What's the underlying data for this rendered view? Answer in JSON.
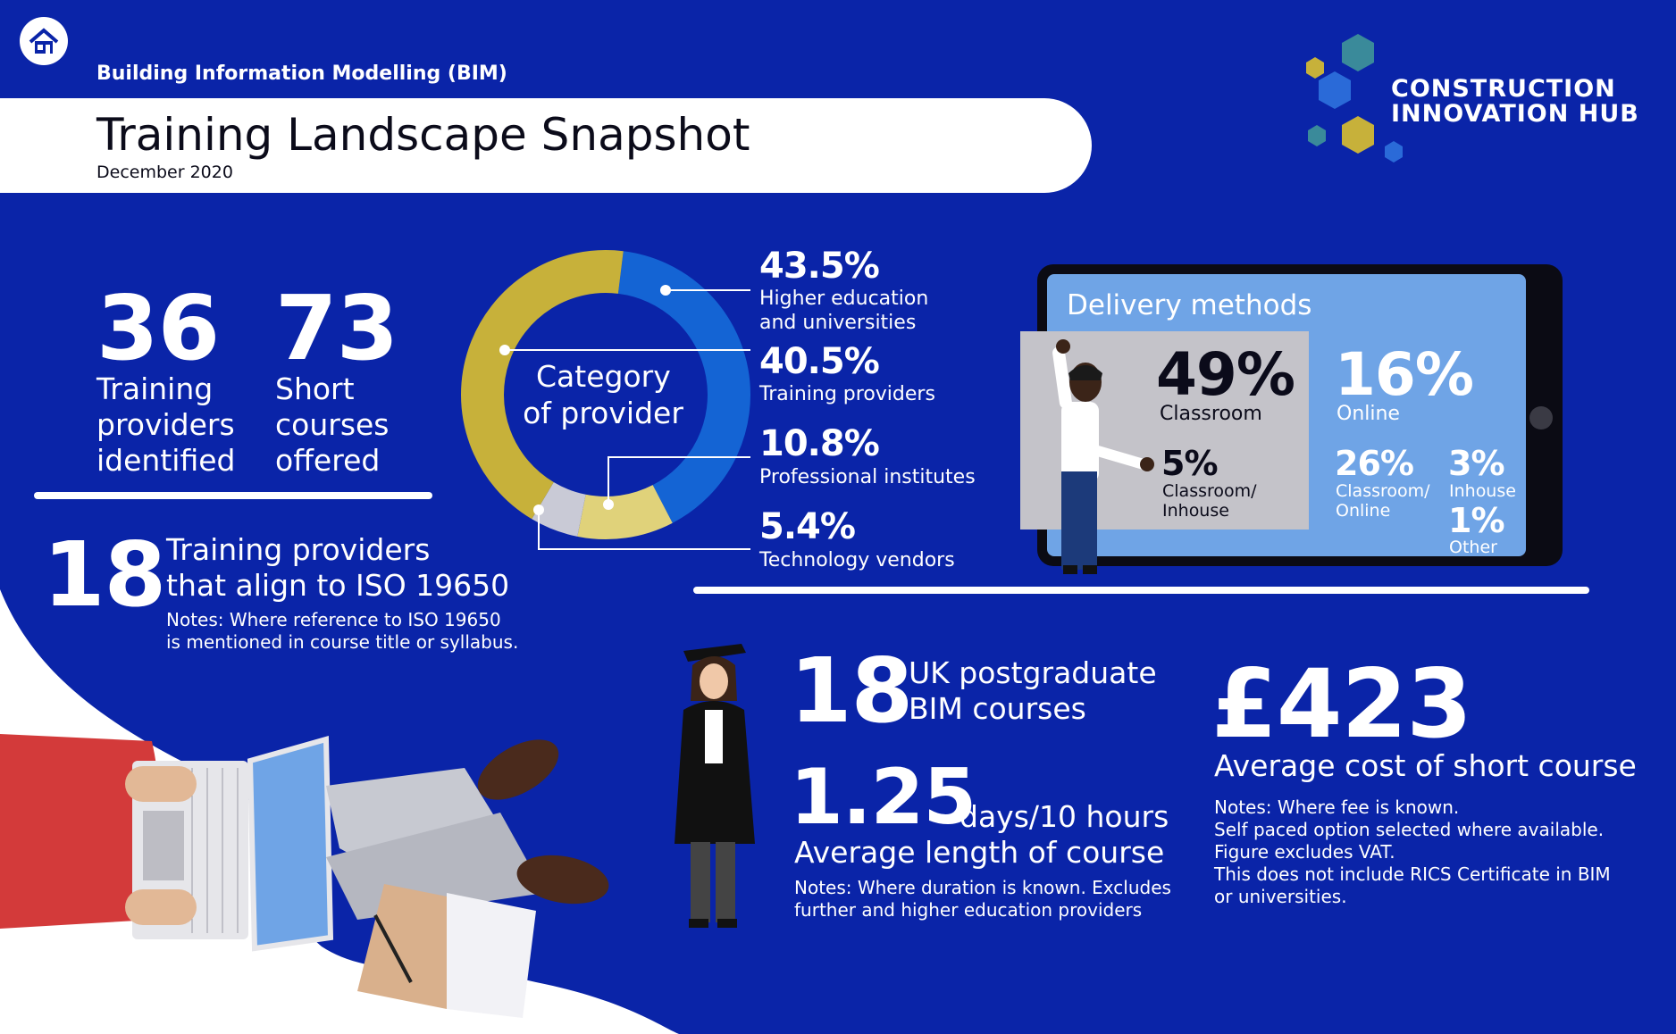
{
  "header": {
    "subtitle": "Building Information Modelling (BIM)",
    "title": "Training Landscape Snapshot",
    "date": "December 2020",
    "home_icon": "home-icon",
    "brand_line1": "CONSTRUCTION",
    "brand_line2": "INNOVATION HUB"
  },
  "stats": {
    "providers": {
      "value": "36",
      "line1": "Training",
      "line2": "providers",
      "line3": "identified"
    },
    "courses": {
      "value": "73",
      "line1": "Short",
      "line2": "courses",
      "line3": "offered"
    },
    "iso": {
      "value": "18",
      "line1": "Training providers",
      "line2": "that align to ISO 19650",
      "note1": "Notes: Where reference to ISO 19650",
      "note2": "is mentioned in course title or syllabus."
    }
  },
  "category": {
    "center1": "Category",
    "center2": "of provider",
    "items": [
      {
        "pct": "43.5%",
        "line1": "Higher education",
        "line2": "and universities"
      },
      {
        "pct": "40.5%",
        "line1": "Training providers",
        "line2": ""
      },
      {
        "pct": "10.8%",
        "line1": "Professional institutes",
        "line2": ""
      },
      {
        "pct": "5.4%",
        "line1": "Technology vendors",
        "line2": ""
      }
    ]
  },
  "chart_data": {
    "type": "pie",
    "title": "Category of provider",
    "categories": [
      "Higher education and universities",
      "Training providers",
      "Professional institutes",
      "Technology vendors"
    ],
    "values": [
      43.5,
      40.5,
      10.8,
      5.4
    ],
    "colors": [
      "#c7b13a",
      "#1464d4",
      "#e0d27a",
      "#c9cad6"
    ]
  },
  "delivery": {
    "title": "Delivery methods",
    "classroom": {
      "pct": "49%",
      "label": "Classroom"
    },
    "online": {
      "pct": "16%",
      "label": "Online"
    },
    "classroom_inhouse": {
      "pct": "5%",
      "line1": "Classroom/",
      "line2": "Inhouse"
    },
    "classroom_online": {
      "pct": "26%",
      "line1": "Classroom/",
      "line2": "Online"
    },
    "inhouse": {
      "pct": "3%",
      "label": "Inhouse"
    },
    "other": {
      "pct": "1%",
      "label": "Other"
    }
  },
  "postgrad": {
    "value": "18",
    "line1": "UK postgraduate",
    "line2": "BIM courses"
  },
  "length": {
    "value": "1.25",
    "unit": "days/10 hours",
    "label": "Average length of course",
    "note1": "Notes: Where duration is known. Excludes",
    "note2": "further and higher education providers"
  },
  "cost": {
    "value": "£423",
    "label": "Average cost of short course",
    "notes": [
      "Notes: Where fee is known.",
      "Self paced option selected where available.",
      "Figure excludes VAT.",
      "This does not include RICS Certificate in BIM",
      "or universities."
    ]
  },
  "colors": {
    "background": "#0a24a8",
    "gold": "#c7b13a",
    "blue": "#1464d4",
    "light_blue": "#6fa4e6",
    "grey_panel": "#c4c3c9"
  }
}
